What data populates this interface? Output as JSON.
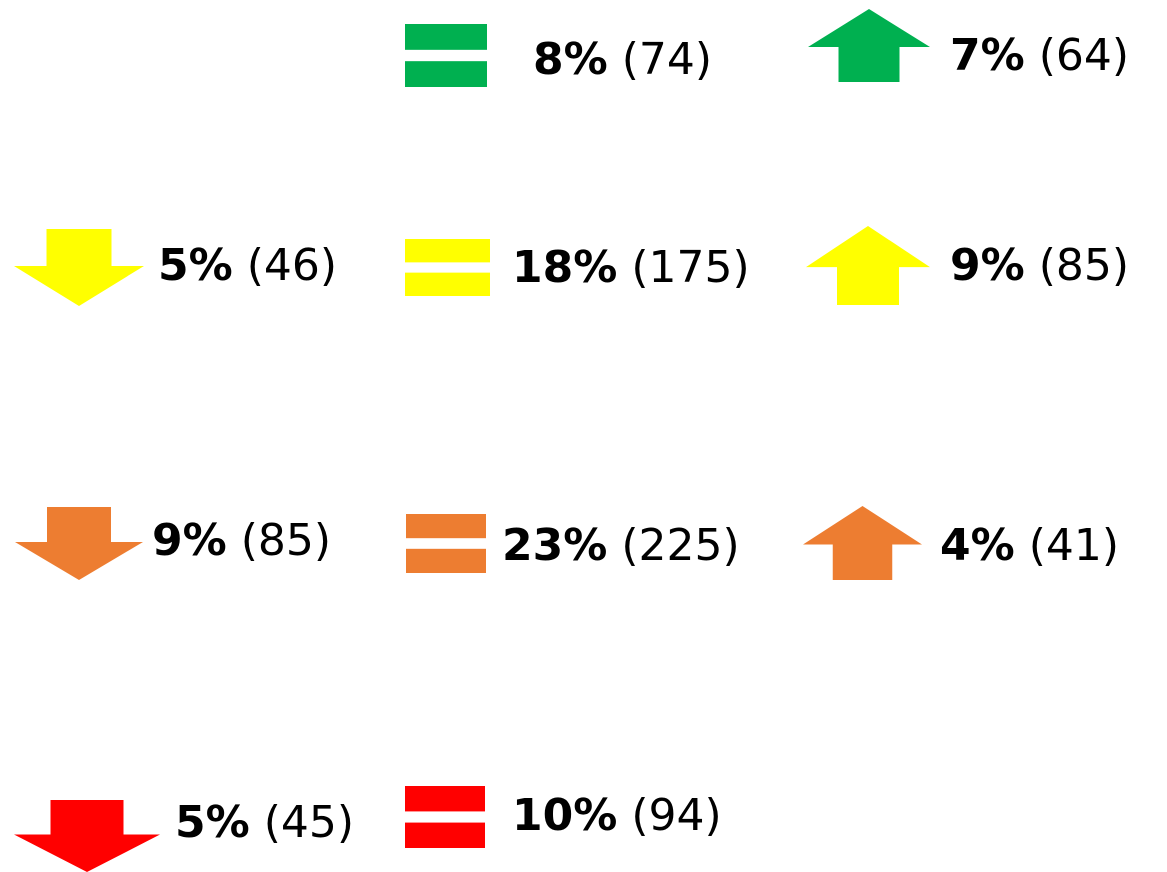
{
  "rows": [
    [
      null,
      {
        "icon": "equal",
        "color": "#00b050",
        "percent": "8%",
        "count": "(74)"
      },
      {
        "icon": "up",
        "color": "#00b050",
        "percent": "7%",
        "count": "(64)"
      }
    ],
    [
      {
        "icon": "down",
        "color": "#ffff00",
        "percent": "5%",
        "count": "(46)"
      },
      {
        "icon": "equal",
        "color": "#ffff00",
        "percent": "18%",
        "count": "(175)"
      },
      {
        "icon": "up",
        "color": "#ffff00",
        "percent": "9%",
        "count": "(85)"
      }
    ],
    [
      {
        "icon": "down",
        "color": "#ed7d31",
        "percent": "9%",
        "count": "(85)"
      },
      {
        "icon": "equal",
        "color": "#ed7d31",
        "percent": "23%",
        "count": "(225)"
      },
      {
        "icon": "up",
        "color": "#ed7d31",
        "percent": "4%",
        "count": "(41)"
      }
    ],
    [
      {
        "icon": "down",
        "color": "#ff0000",
        "percent": "5%",
        "count": "(45)"
      },
      {
        "icon": "equal",
        "color": "#ff0000",
        "percent": "10%",
        "count": "(94)"
      },
      null
    ]
  ]
}
